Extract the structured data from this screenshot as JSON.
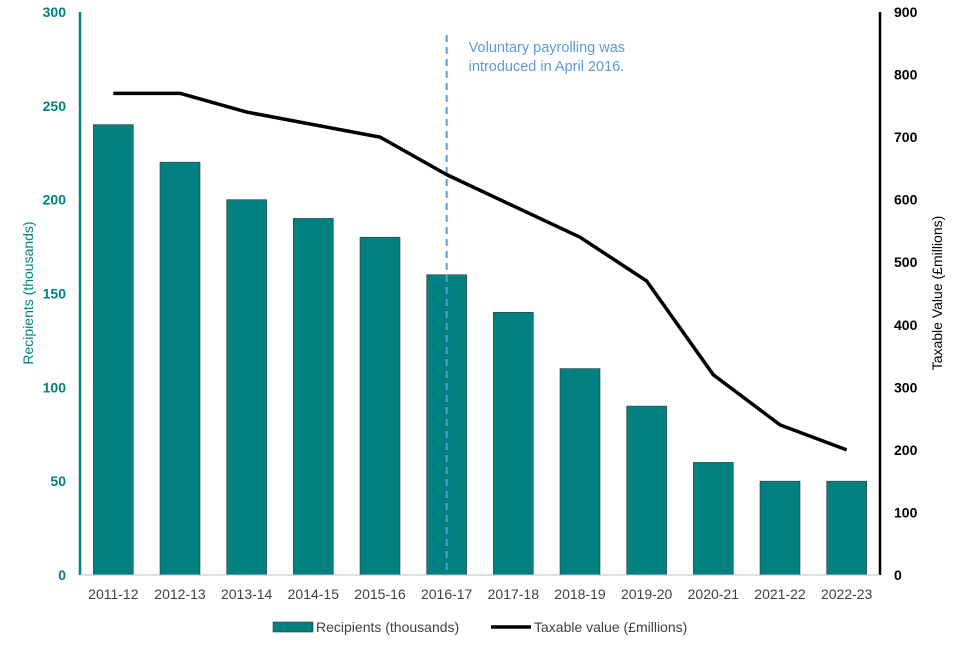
{
  "chart_data": {
    "type": "bar+line",
    "categories": [
      "2011-12",
      "2012-13",
      "2013-14",
      "2014-15",
      "2015-16",
      "2016-17",
      "2017-18",
      "2018-19",
      "2019-20",
      "2020-21",
      "2021-22",
      "2022-23"
    ],
    "series": [
      {
        "name": "Recipients (thousands)",
        "type": "bar",
        "axis": "left",
        "color": "#008080",
        "values": [
          240,
          220,
          200,
          190,
          180,
          160,
          140,
          110,
          90,
          60,
          50,
          50
        ]
      },
      {
        "name": "Taxable value (£millions)",
        "type": "line",
        "axis": "right",
        "color": "#000000",
        "values": [
          770,
          770,
          740,
          720,
          700,
          640,
          590,
          540,
          470,
          320,
          240,
          200
        ]
      }
    ],
    "ylabel_left": "Recipients (thousands)",
    "ylabel_right": "Taxable Value (£millions)",
    "ylim_left": [
      0,
      300
    ],
    "ylim_right": [
      0,
      900
    ],
    "yticks_left": [
      0,
      50,
      100,
      150,
      200,
      250,
      300
    ],
    "yticks_right": [
      0,
      100,
      200,
      300,
      400,
      500,
      600,
      700,
      800,
      900
    ],
    "grid": false,
    "legend_position": "bottom",
    "annotation": {
      "lines": [
        "Voluntary payrolling was",
        "introduced in April 2016."
      ],
      "at_category": "2016-17",
      "color": "#5b9bd5"
    }
  }
}
